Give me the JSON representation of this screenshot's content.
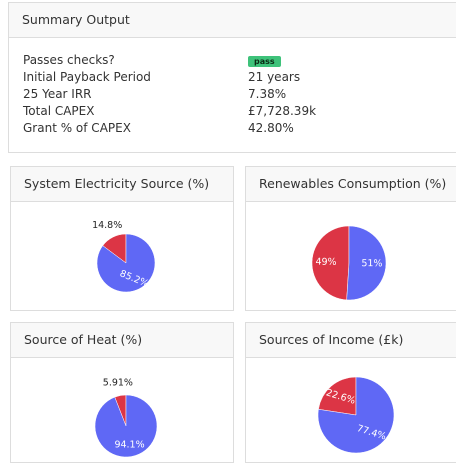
{
  "summary": {
    "title": "Summary Output",
    "rows": [
      {
        "label": "Passes checks?",
        "value": "pass"
      },
      {
        "label": "Initial Payback Period",
        "value": "21 years"
      },
      {
        "label": "25 Year IRR",
        "value": "7.38%"
      },
      {
        "label": "Total CAPEX",
        "value": "£7,728.39k"
      },
      {
        "label": "Grant % of CAPEX",
        "value": "42.80%"
      }
    ]
  },
  "chart_data": [
    {
      "type": "pie",
      "title": "System Electricity Source (%)",
      "values": [
        14.8,
        85.2
      ],
      "value_labels": [
        "14.8%",
        "85.2%"
      ],
      "colors": [
        "#dc3545",
        "#5f68f5"
      ]
    },
    {
      "type": "pie",
      "title": "Renewables Consumption (%)",
      "values": [
        49,
        51
      ],
      "value_labels": [
        "49%",
        "51%"
      ],
      "colors": [
        "#dc3545",
        "#5f68f5"
      ]
    },
    {
      "type": "pie",
      "title": "Source of Heat (%)",
      "values": [
        5.91,
        94.1
      ],
      "value_labels": [
        "5.91%",
        "94.1%"
      ],
      "colors": [
        "#dc3545",
        "#5f68f5"
      ]
    },
    {
      "type": "pie",
      "title": "Sources of Income (£k)",
      "values": [
        22.6,
        77.4
      ],
      "value_labels": [
        "22.6%",
        "77.4%"
      ],
      "colors": [
        "#dc3545",
        "#5f68f5"
      ]
    }
  ]
}
